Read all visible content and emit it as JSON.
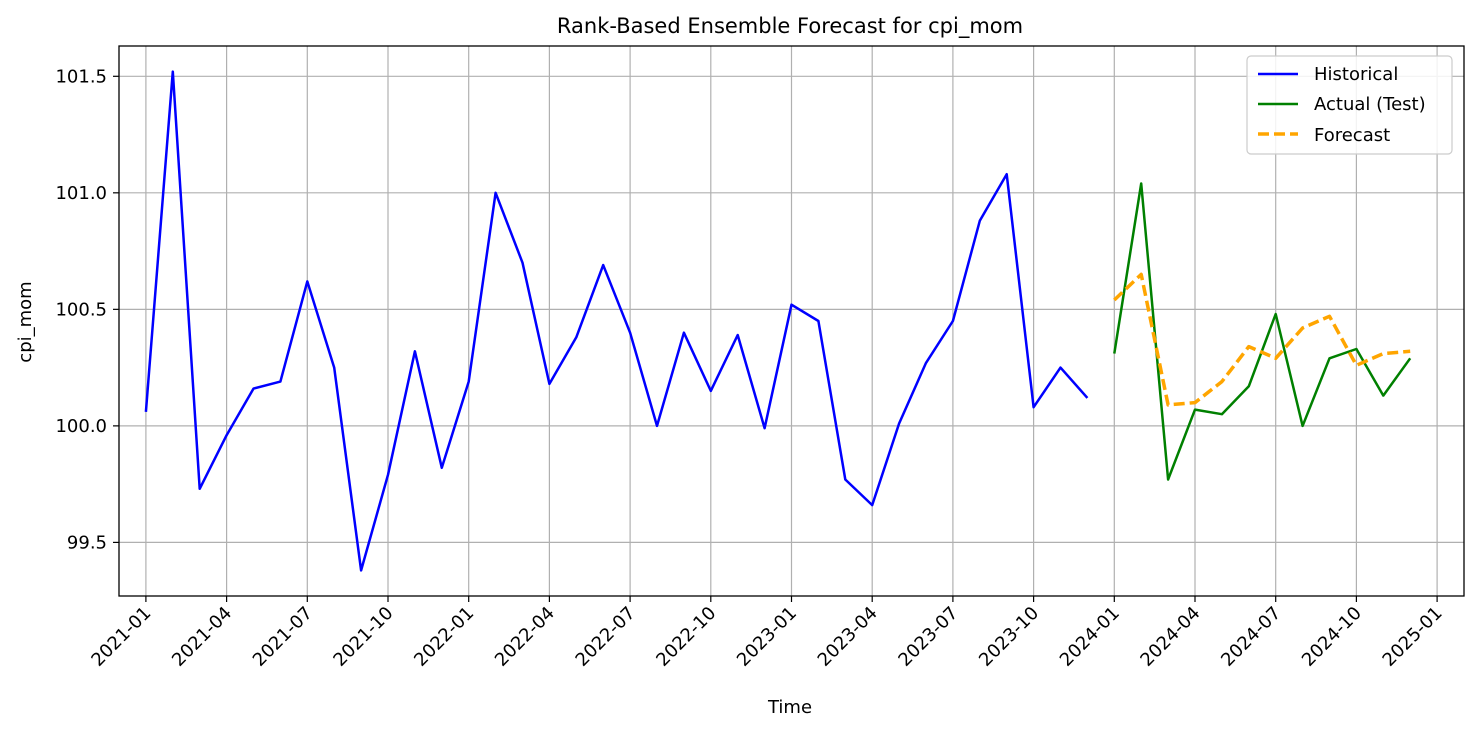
{
  "chart_data": {
    "type": "line",
    "title": "Rank-Based Ensemble Forecast for cpi_mom",
    "xlabel": "Time",
    "ylabel": "cpi_mom",
    "x_ticks": [
      "2021-01",
      "2021-04",
      "2021-07",
      "2021-10",
      "2022-01",
      "2022-04",
      "2022-07",
      "2022-10",
      "2023-01",
      "2023-04",
      "2023-07",
      "2023-10",
      "2024-01",
      "2024-04",
      "2024-07",
      "2024-10",
      "2025-01"
    ],
    "y_ticks": [
      99.5,
      100.0,
      100.5,
      101.0,
      101.5
    ],
    "y_tick_labels": [
      "99.5",
      "100.0",
      "100.5",
      "101.0",
      "101.5"
    ],
    "xlim": [
      "2020-12",
      "2025-02"
    ],
    "ylim": [
      99.27,
      101.63
    ],
    "grid": true,
    "legend_position": "top-right",
    "series": [
      {
        "name": "Historical",
        "color": "#0000ff",
        "style": "solid",
        "x": [
          "2021-01",
          "2021-02",
          "2021-03",
          "2021-04",
          "2021-05",
          "2021-06",
          "2021-07",
          "2021-08",
          "2021-09",
          "2021-10",
          "2021-11",
          "2021-12",
          "2022-01",
          "2022-02",
          "2022-03",
          "2022-04",
          "2022-05",
          "2022-06",
          "2022-07",
          "2022-08",
          "2022-09",
          "2022-10",
          "2022-11",
          "2022-12",
          "2023-01",
          "2023-02",
          "2023-03",
          "2023-04",
          "2023-05",
          "2023-06",
          "2023-07",
          "2023-08",
          "2023-09",
          "2023-10",
          "2023-11",
          "2023-12"
        ],
        "values": [
          100.06,
          101.52,
          99.73,
          99.96,
          100.16,
          100.19,
          100.62,
          100.25,
          99.38,
          99.79,
          100.32,
          99.82,
          100.19,
          101.0,
          100.7,
          100.18,
          100.38,
          100.69,
          100.4,
          100.0,
          100.4,
          100.15,
          100.39,
          99.99,
          100.52,
          100.45,
          99.77,
          99.66,
          100.01,
          100.27,
          100.45,
          100.88,
          101.08,
          100.08,
          100.25,
          100.12
        ]
      },
      {
        "name": "Actual (Test)",
        "color": "#008000",
        "style": "solid",
        "x": [
          "2024-01",
          "2024-02",
          "2024-03",
          "2024-04",
          "2024-05",
          "2024-06",
          "2024-07",
          "2024-08",
          "2024-09",
          "2024-10",
          "2024-11",
          "2024-12"
        ],
        "values": [
          100.31,
          101.04,
          99.77,
          100.07,
          100.05,
          100.17,
          100.48,
          100.0,
          100.29,
          100.33,
          100.13,
          100.29
        ]
      },
      {
        "name": "Forecast",
        "color": "#ffa500",
        "style": "dashed",
        "x": [
          "2024-01",
          "2024-02",
          "2024-03",
          "2024-04",
          "2024-05",
          "2024-06",
          "2024-07",
          "2024-08",
          "2024-09",
          "2024-10",
          "2024-11",
          "2024-12"
        ],
        "values": [
          100.54,
          100.65,
          100.09,
          100.1,
          100.19,
          100.34,
          100.29,
          100.42,
          100.47,
          100.26,
          100.31,
          100.32
        ]
      }
    ]
  }
}
